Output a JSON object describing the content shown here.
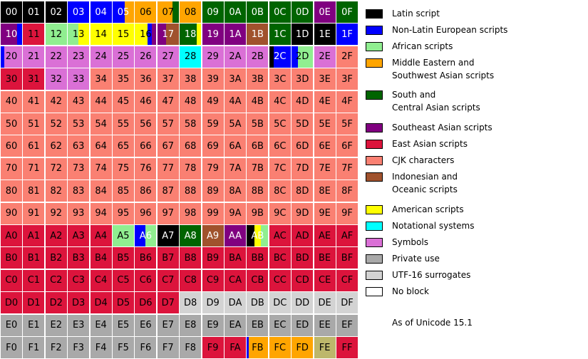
{
  "categories": [
    {
      "id": "latin",
      "label_lines": [
        "Latin script"
      ],
      "color": "#000000"
    },
    {
      "id": "nonlatin",
      "label_lines": [
        "Non-Latin European scripts"
      ],
      "color": "#0000ff"
    },
    {
      "id": "african",
      "label_lines": [
        "African scripts"
      ],
      "color": "#90ee90"
    },
    {
      "id": "mideast",
      "label_lines": [
        "Middle Eastern and",
        "Southwest Asian scripts"
      ],
      "color": "#ffa500"
    },
    {
      "id": "southasia",
      "label_lines": [
        "South and",
        "Central Asian scripts"
      ],
      "color": "#006400"
    },
    {
      "id": "seasia",
      "label_lines": [
        "Southeast Asian scripts"
      ],
      "color": "#800080"
    },
    {
      "id": "eastasia",
      "label_lines": [
        "East Asian scripts"
      ],
      "color": "#dc143c"
    },
    {
      "id": "cjk",
      "label_lines": [
        "CJK characters"
      ],
      "color": "#fa8072"
    },
    {
      "id": "indonesian",
      "label_lines": [
        "Indonesian and",
        "Oceanic scripts"
      ],
      "color": "#a0522d"
    },
    {
      "id": "american",
      "label_lines": [
        "American scripts"
      ],
      "color": "#ffff00"
    },
    {
      "id": "notational",
      "label_lines": [
        "Notational systems"
      ],
      "color": "#00ffff"
    },
    {
      "id": "symbols",
      "label_lines": [
        "Symbols"
      ],
      "color": "#da70d6"
    },
    {
      "id": "private",
      "label_lines": [
        "Private use"
      ],
      "color": "#a9a9a9"
    },
    {
      "id": "surrogates",
      "label_lines": [
        "UTF-16 surrogates"
      ],
      "color": "#d3d3d3"
    },
    {
      "id": "noblock",
      "label_lines": [
        "No block"
      ],
      "color": "#ffffff"
    }
  ],
  "extra_colors": {
    "khaki": "#bdb76b"
  },
  "footnote": "As of Unicode 15.1",
  "cells": {
    "00": [
      [
        "latin",
        1
      ]
    ],
    "01": [
      [
        "latin",
        1
      ]
    ],
    "02": [
      [
        "latin",
        1
      ]
    ],
    "03": [
      [
        "nonlatin",
        1
      ]
    ],
    "04": [
      [
        "nonlatin",
        1
      ]
    ],
    "05": [
      [
        "nonlatin",
        0.55
      ],
      [
        "mideast",
        0.45
      ]
    ],
    "06": [
      [
        "mideast",
        1
      ]
    ],
    "07": [
      [
        "mideast",
        0.7
      ],
      [
        "southasia",
        0.3
      ]
    ],
    "08": [
      [
        "mideast",
        1
      ]
    ],
    "09": [
      [
        "southasia",
        1
      ]
    ],
    "0A": [
      [
        "southasia",
        1
      ]
    ],
    "0B": [
      [
        "southasia",
        1
      ]
    ],
    "0C": [
      [
        "southasia",
        1
      ]
    ],
    "0D": [
      [
        "southasia",
        1
      ]
    ],
    "0E": [
      [
        "seasia",
        1
      ]
    ],
    "0F": [
      [
        "southasia",
        1
      ]
    ],
    "10": [
      [
        "seasia",
        0.75
      ],
      [
        "nonlatin",
        0.25
      ]
    ],
    "11": [
      [
        "eastasia",
        1
      ]
    ],
    "12": [
      [
        "african",
        1
      ]
    ],
    "13": [
      [
        "african",
        0.5
      ],
      [
        "american",
        0.5
      ]
    ],
    "14": [
      [
        "american",
        1
      ]
    ],
    "15": [
      [
        "american",
        1
      ]
    ],
    "16": [
      [
        "american",
        0.6
      ],
      [
        "nonlatin",
        0.2
      ],
      [
        "seasia",
        0.2
      ]
    ],
    "17": [
      [
        "seasia",
        0.4
      ],
      [
        "indonesian",
        0.6
      ]
    ],
    "18": [
      [
        "southasia",
        0.8
      ],
      [
        "american",
        0.2
      ]
    ],
    "19": [
      [
        "seasia",
        1
      ]
    ],
    "1A": [
      [
        "seasia",
        1
      ]
    ],
    "1B": [
      [
        "indonesian",
        1
      ]
    ],
    "1C": [
      [
        "southasia",
        1
      ]
    ],
    "1D": [
      [
        "latin",
        1
      ]
    ],
    "1E": [
      [
        "latin",
        1
      ]
    ],
    "1F": [
      [
        "nonlatin",
        1
      ]
    ],
    "20": [
      [
        "nonlatin",
        0.15
      ],
      [
        "symbols",
        0.85
      ]
    ],
    "21": [
      [
        "symbols",
        1
      ]
    ],
    "22": [
      [
        "symbols",
        1
      ]
    ],
    "23": [
      [
        "symbols",
        1
      ]
    ],
    "24": [
      [
        "symbols",
        1
      ]
    ],
    "25": [
      [
        "symbols",
        1
      ]
    ],
    "26": [
      [
        "symbols",
        1
      ]
    ],
    "27": [
      [
        "symbols",
        1
      ]
    ],
    "28": [
      [
        "notational",
        1
      ]
    ],
    "29": [
      [
        "symbols",
        1
      ]
    ],
    "2A": [
      [
        "symbols",
        1
      ]
    ],
    "2B": [
      [
        "symbols",
        1
      ]
    ],
    "2C": [
      [
        "latin",
        0.2
      ],
      [
        "nonlatin",
        0.8
      ]
    ],
    "2D": [
      [
        "nonlatin",
        0.3
      ],
      [
        "african",
        0.7
      ]
    ],
    "2E": [
      [
        "symbols",
        1
      ]
    ],
    "2F": [
      [
        "cjk",
        1
      ]
    ],
    "30": [
      [
        "eastasia",
        1
      ]
    ],
    "31": [
      [
        "eastasia",
        1
      ]
    ],
    "32": [
      [
        "symbols",
        1
      ]
    ],
    "33": [
      [
        "symbols",
        1
      ]
    ],
    "A0": [
      [
        "eastasia",
        1
      ]
    ],
    "A1": [
      [
        "eastasia",
        1
      ]
    ],
    "A2": [
      [
        "eastasia",
        1
      ]
    ],
    "A3": [
      [
        "eastasia",
        1
      ]
    ],
    "A4": [
      [
        "eastasia",
        1
      ]
    ],
    "A5": [
      [
        "african",
        1
      ]
    ],
    "A6": [
      [
        "nonlatin",
        0.5
      ],
      [
        "african",
        0.5
      ]
    ],
    "A7": [
      [
        "latin",
        1
      ]
    ],
    "A8": [
      [
        "southasia",
        1
      ]
    ],
    "A9": [
      [
        "indonesian",
        1
      ]
    ],
    "AA": [
      [
        "seasia",
        1
      ]
    ],
    "AB": [
      [
        "latin",
        0.35
      ],
      [
        "american",
        0.3
      ],
      [
        "african",
        0.35
      ]
    ],
    "AC": [
      [
        "eastasia",
        1
      ]
    ],
    "AD": [
      [
        "eastasia",
        1
      ]
    ],
    "AE": [
      [
        "eastasia",
        1
      ]
    ],
    "AF": [
      [
        "eastasia",
        1
      ]
    ],
    "B0": [
      [
        "eastasia",
        1
      ]
    ],
    "B1": [
      [
        "eastasia",
        1
      ]
    ],
    "B2": [
      [
        "eastasia",
        1
      ]
    ],
    "B3": [
      [
        "eastasia",
        1
      ]
    ],
    "B4": [
      [
        "eastasia",
        1
      ]
    ],
    "B5": [
      [
        "eastasia",
        1
      ]
    ],
    "B6": [
      [
        "eastasia",
        1
      ]
    ],
    "B7": [
      [
        "eastasia",
        1
      ]
    ],
    "B8": [
      [
        "eastasia",
        1
      ]
    ],
    "B9": [
      [
        "eastasia",
        1
      ]
    ],
    "BA": [
      [
        "eastasia",
        1
      ]
    ],
    "BB": [
      [
        "eastasia",
        1
      ]
    ],
    "BC": [
      [
        "eastasia",
        1
      ]
    ],
    "BD": [
      [
        "eastasia",
        1
      ]
    ],
    "BE": [
      [
        "eastasia",
        1
      ]
    ],
    "BF": [
      [
        "eastasia",
        1
      ]
    ],
    "C0": [
      [
        "eastasia",
        1
      ]
    ],
    "C1": [
      [
        "eastasia",
        1
      ]
    ],
    "C2": [
      [
        "eastasia",
        1
      ]
    ],
    "C3": [
      [
        "eastasia",
        1
      ]
    ],
    "C4": [
      [
        "eastasia",
        1
      ]
    ],
    "C5": [
      [
        "eastasia",
        1
      ]
    ],
    "C6": [
      [
        "eastasia",
        1
      ]
    ],
    "C7": [
      [
        "eastasia",
        1
      ]
    ],
    "C8": [
      [
        "eastasia",
        1
      ]
    ],
    "C9": [
      [
        "eastasia",
        1
      ]
    ],
    "CA": [
      [
        "eastasia",
        1
      ]
    ],
    "CB": [
      [
        "eastasia",
        1
      ]
    ],
    "CC": [
      [
        "eastasia",
        1
      ]
    ],
    "CD": [
      [
        "eastasia",
        1
      ]
    ],
    "CE": [
      [
        "eastasia",
        1
      ]
    ],
    "CF": [
      [
        "eastasia",
        1
      ]
    ],
    "D0": [
      [
        "eastasia",
        1
      ]
    ],
    "D1": [
      [
        "eastasia",
        1
      ]
    ],
    "D2": [
      [
        "eastasia",
        1
      ]
    ],
    "D3": [
      [
        "eastasia",
        1
      ]
    ],
    "D4": [
      [
        "eastasia",
        1
      ]
    ],
    "D5": [
      [
        "eastasia",
        1
      ]
    ],
    "D6": [
      [
        "eastasia",
        1
      ]
    ],
    "D7": [
      [
        "eastasia",
        1
      ]
    ],
    "D8": [
      [
        "surrogates",
        1
      ]
    ],
    "D9": [
      [
        "surrogates",
        1
      ]
    ],
    "DA": [
      [
        "surrogates",
        1
      ]
    ],
    "DB": [
      [
        "surrogates",
        1
      ]
    ],
    "DC": [
      [
        "surrogates",
        1
      ]
    ],
    "DD": [
      [
        "surrogates",
        1
      ]
    ],
    "DE": [
      [
        "surrogates",
        1
      ]
    ],
    "DF": [
      [
        "surrogates",
        1
      ]
    ],
    "E0": [
      [
        "private",
        1
      ]
    ],
    "E1": [
      [
        "private",
        1
      ]
    ],
    "E2": [
      [
        "private",
        1
      ]
    ],
    "E3": [
      [
        "private",
        1
      ]
    ],
    "E4": [
      [
        "private",
        1
      ]
    ],
    "E5": [
      [
        "private",
        1
      ]
    ],
    "E6": [
      [
        "private",
        1
      ]
    ],
    "E7": [
      [
        "private",
        1
      ]
    ],
    "E8": [
      [
        "private",
        1
      ]
    ],
    "E9": [
      [
        "private",
        1
      ]
    ],
    "EA": [
      [
        "private",
        1
      ]
    ],
    "EB": [
      [
        "private",
        1
      ]
    ],
    "EC": [
      [
        "private",
        1
      ]
    ],
    "ED": [
      [
        "private",
        1
      ]
    ],
    "EE": [
      [
        "private",
        1
      ]
    ],
    "EF": [
      [
        "private",
        1
      ]
    ],
    "F0": [
      [
        "private",
        1
      ]
    ],
    "F1": [
      [
        "private",
        1
      ]
    ],
    "F2": [
      [
        "private",
        1
      ]
    ],
    "F3": [
      [
        "private",
        1
      ]
    ],
    "F4": [
      [
        "private",
        1
      ]
    ],
    "F5": [
      [
        "private",
        1
      ]
    ],
    "F6": [
      [
        "private",
        1
      ]
    ],
    "F7": [
      [
        "private",
        1
      ]
    ],
    "F8": [
      [
        "private",
        1
      ]
    ],
    "F9": [
      [
        "eastasia",
        1
      ]
    ],
    "FA": [
      [
        "eastasia",
        1
      ]
    ],
    "FB": [
      [
        "nonlatin",
        0.1
      ],
      [
        "mideast",
        0.9
      ]
    ],
    "FC": [
      [
        "mideast",
        1
      ]
    ],
    "FD": [
      [
        "mideast",
        1
      ]
    ],
    "FE": [
      [
        "khaki",
        1
      ]
    ],
    "FF": [
      [
        "eastasia",
        1
      ]
    ]
  },
  "default_category": "cjk",
  "dark_categories": [
    "latin",
    "nonlatin",
    "southasia",
    "seasia",
    "indonesian"
  ]
}
